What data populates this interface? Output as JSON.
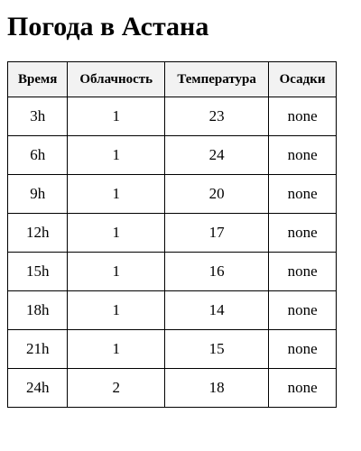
{
  "title": "Погода в Астана",
  "table": {
    "headers": [
      "Время",
      "Облачность",
      "Температура",
      "Осадки"
    ],
    "rows": [
      {
        "time": "3h",
        "cloud": "1",
        "temp": "23",
        "precip": "none"
      },
      {
        "time": "6h",
        "cloud": "1",
        "temp": "24",
        "precip": "none"
      },
      {
        "time": "9h",
        "cloud": "1",
        "temp": "20",
        "precip": "none"
      },
      {
        "time": "12h",
        "cloud": "1",
        "temp": "17",
        "precip": "none"
      },
      {
        "time": "15h",
        "cloud": "1",
        "temp": "16",
        "precip": "none"
      },
      {
        "time": "18h",
        "cloud": "1",
        "temp": "14",
        "precip": "none"
      },
      {
        "time": "21h",
        "cloud": "1",
        "temp": "15",
        "precip": "none"
      },
      {
        "time": "24h",
        "cloud": "2",
        "temp": "18",
        "precip": "none"
      }
    ]
  }
}
